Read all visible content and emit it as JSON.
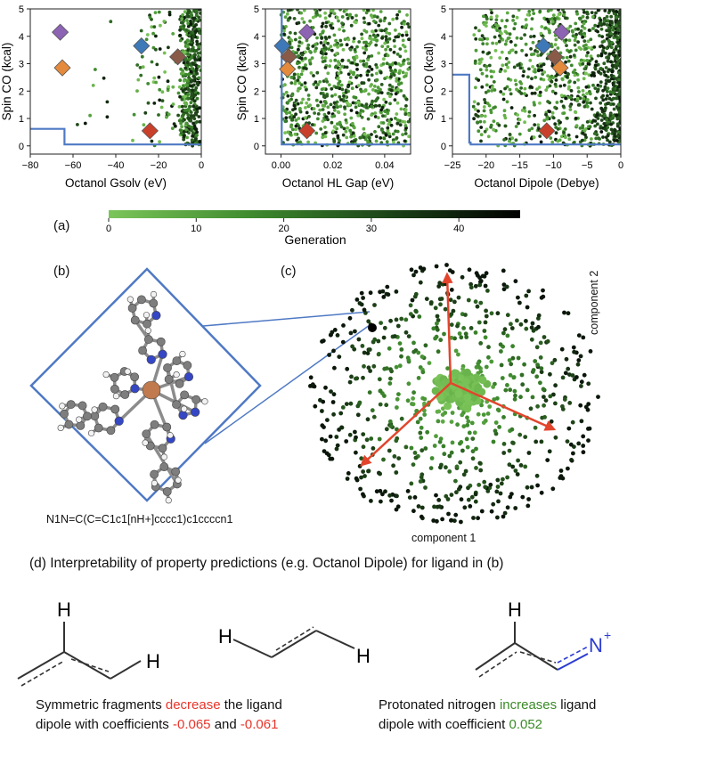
{
  "colors": {
    "frontier": "#4f79c4",
    "axes_box": "#4f79c4",
    "green_light": "#7cc55a",
    "green_dark": "#0b170b",
    "arrow": "#e2452c",
    "marker_purple": "#8d63b4",
    "marker_blue": "#3d78b8",
    "marker_orange": "#e48a3c",
    "marker_brown": "#8a5a48",
    "marker_red": "#c9402a",
    "text_red": "#e8352a",
    "text_green": "#3a8a27",
    "nitrogen_blue": "#2b3cd1"
  },
  "chart_data": [
    {
      "type": "scatter",
      "xlabel": "Octanol Gsolv (eV)",
      "ylabel": "Spin CO (kcal)",
      "xlim": [
        -80,
        0
      ],
      "ylim": [
        -0.3,
        5
      ],
      "xticks": [
        "−80",
        "−60",
        "−40",
        "−20",
        "0"
      ],
      "yticks": [
        "0",
        "1",
        "2",
        "3",
        "4",
        "5"
      ],
      "frontier": [
        [
          -80,
          0.62
        ],
        [
          -64,
          0.62
        ],
        [
          -64,
          0.05
        ],
        [
          0,
          0.05
        ]
      ],
      "highlighted_points": [
        {
          "color": "purple",
          "x": -66,
          "y": 4.15
        },
        {
          "color": "orange",
          "x": -65,
          "y": 2.85
        },
        {
          "color": "blue",
          "x": -28,
          "y": 3.65
        },
        {
          "color": "brown",
          "x": -11,
          "y": 3.25
        },
        {
          "color": "red",
          "x": -24,
          "y": 0.55
        }
      ]
    },
    {
      "type": "scatter",
      "xlabel": "Octanol HL Gap (eV)",
      "ylabel": "Spin CO (kcal)",
      "xlim": [
        -0.006,
        0.05
      ],
      "ylim": [
        -0.3,
        5
      ],
      "xticks": [
        "0.00",
        "0.02",
        "0.04"
      ],
      "yticks": [
        "0",
        "1",
        "2",
        "3",
        "4",
        "5"
      ],
      "frontier": [
        [
          0.0003,
          5
        ],
        [
          0.0003,
          0.05
        ],
        [
          0.05,
          0.05
        ]
      ],
      "highlighted_points": [
        {
          "color": "blue",
          "x": 0.0005,
          "y": 3.65
        },
        {
          "color": "brown",
          "x": 0.003,
          "y": 3.25
        },
        {
          "color": "orange",
          "x": 0.0025,
          "y": 2.8
        },
        {
          "color": "purple",
          "x": 0.01,
          "y": 4.15
        },
        {
          "color": "red",
          "x": 0.01,
          "y": 0.55
        }
      ]
    },
    {
      "type": "scatter",
      "xlabel": "Octanol Dipole (Debye)",
      "ylabel": "Spin CO (kcal)",
      "xlim": [
        -25,
        0
      ],
      "ylim": [
        -0.3,
        5
      ],
      "xticks": [
        "−25",
        "−20",
        "−15",
        "−10",
        "−5",
        "0"
      ],
      "yticks": [
        "0",
        "1",
        "2",
        "3",
        "4",
        "5"
      ],
      "frontier": [
        [
          -25,
          2.6
        ],
        [
          -22.5,
          2.6
        ],
        [
          -22.5,
          0.12
        ],
        [
          -22.3,
          0.12
        ],
        [
          -22.3,
          0.05
        ],
        [
          0,
          0.05
        ]
      ],
      "highlighted_points": [
        {
          "color": "blue",
          "x": -11.5,
          "y": 3.65
        },
        {
          "color": "brown",
          "x": -9.8,
          "y": 3.25
        },
        {
          "color": "orange",
          "x": -9,
          "y": 2.85
        },
        {
          "color": "purple",
          "x": -8.8,
          "y": 4.15
        },
        {
          "color": "red",
          "x": -11,
          "y": 0.55
        }
      ]
    },
    {
      "type": "scatter",
      "xlabel": "component 1",
      "ylabel": "component 2",
      "arrows": 3
    }
  ],
  "colorbar": {
    "label": "Generation",
    "ticks": [
      "0",
      "10",
      "20",
      "30",
      "40"
    ],
    "min": 0,
    "max": 47
  },
  "panel_labels": {
    "a": "(a)",
    "b": "(b)",
    "c": "(c)"
  },
  "smiles": "N1N=C(C=C1c1[nH+]cccc1)c1ccccn1",
  "section_d_title": "(d) Interpretability of property predictions (e.g. Octanol Dipole) for ligand in (b)",
  "fragments": {
    "left": {
      "h_top": "H",
      "h_right": "H"
    },
    "middle": {
      "h_left": "H",
      "h_right": "H"
    },
    "right": {
      "h_top": "H",
      "n": "N",
      "plus": "+"
    }
  },
  "caption_left": {
    "line1_a": "Symmetric fragments ",
    "line1_red": "decrease",
    "line1_b": " the ligand",
    "line2_a": "dipole with coefficients ",
    "coef1": "-0.065",
    "line2_and": " and ",
    "coef2": "-0.061"
  },
  "caption_right": {
    "line1_a": "Protonated nitrogen ",
    "line1_green": "increases",
    "line1_b": " ligand",
    "line2_a": "dipole with coefficient ",
    "coef": "0.052"
  }
}
